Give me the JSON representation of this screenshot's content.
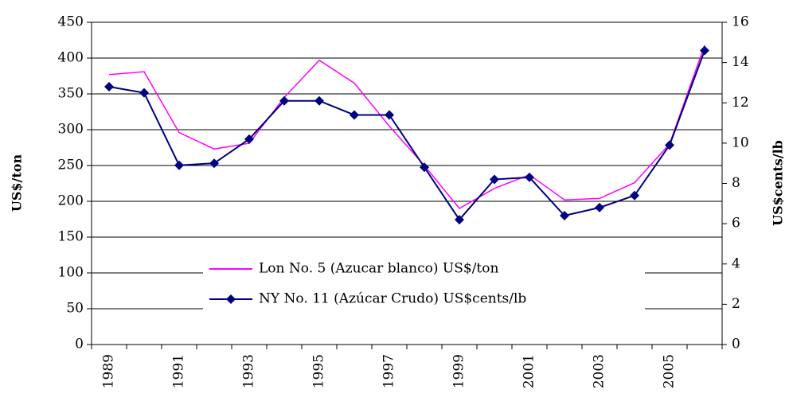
{
  "chart_data": {
    "type": "line",
    "categories": [
      "1989",
      null,
      "1991",
      null,
      "1993",
      null,
      "1995",
      null,
      "1997",
      null,
      "1999",
      null,
      "2001",
      null,
      "2003",
      null,
      "2005",
      null
    ],
    "y_label": "US$/ton",
    "y2_label": "US$cents/lb",
    "ylim": [
      0,
      450
    ],
    "yticks": [
      0,
      50,
      100,
      150,
      200,
      250,
      300,
      350,
      400,
      450
    ],
    "y2lim": [
      0,
      16
    ],
    "y2ticks": [
      0,
      2,
      4,
      6,
      8,
      10,
      12,
      14,
      16
    ],
    "grid": true,
    "legend": "center",
    "series": [
      {
        "name": "Lon No. 5 (Azucar blanco) US$/ton",
        "color": "#ff00ff",
        "marker": "none",
        "values": [
          377,
          381,
          296,
          273,
          281,
          345,
          397,
          365,
          305,
          250,
          190,
          218,
          237,
          202,
          204,
          226,
          280,
          418
        ]
      },
      {
        "name": "NY No. 11 (Azúcar Crudo) US$cents/lb",
        "color": "#000080",
        "marker": "diamond",
        "axis": "y2",
        "values": [
          12.8,
          12.5,
          8.9,
          9.0,
          10.2,
          12.1,
          12.1,
          11.4,
          11.4,
          8.8,
          6.2,
          8.2,
          8.3,
          6.4,
          6.8,
          7.4,
          9.9,
          14.6
        ]
      }
    ]
  }
}
